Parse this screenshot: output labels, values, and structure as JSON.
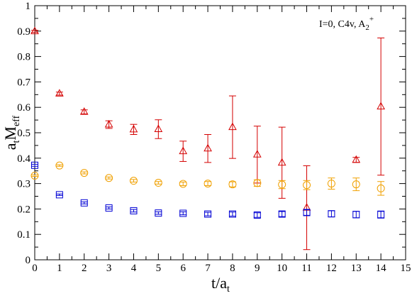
{
  "chart_data": {
    "type": "scatter",
    "xlim": [
      0,
      15
    ],
    "ylim": [
      0,
      1
    ],
    "xticks": [
      0,
      1,
      2,
      3,
      4,
      5,
      6,
      7,
      8,
      9,
      10,
      11,
      12,
      13,
      14,
      15
    ],
    "yticks": [
      0,
      0.1,
      0.2,
      0.3,
      0.4,
      0.5,
      0.6,
      0.7,
      0.8,
      0.9,
      1
    ],
    "ytick_labels": [
      "0",
      "0.1",
      "0.2",
      "0.3",
      "0.4",
      "0.5",
      "0.6",
      "0.7",
      "0.8",
      "0.9",
      "1"
    ],
    "xlabel": {
      "main": "t/a",
      "sub": "t"
    },
    "ylabel": {
      "a": "a",
      "a_sub": "t",
      "m": "M",
      "m_sub": "eff"
    },
    "annotation": {
      "main": "I=0, C4v, A",
      "sub": "2",
      "sup": "+"
    },
    "grid": false,
    "series": [
      {
        "marker": "triangle",
        "color": "#d40000",
        "points": [
          {
            "x": 0,
            "y": 0.899,
            "err": 0.004
          },
          {
            "x": 1,
            "y": 0.654,
            "err": 0.006
          },
          {
            "x": 2,
            "y": 0.582,
            "err": 0.008
          },
          {
            "x": 3,
            "y": 0.532,
            "err": 0.015
          },
          {
            "x": 4,
            "y": 0.513,
            "err": 0.02
          },
          {
            "x": 5,
            "y": 0.514,
            "err": 0.037
          },
          {
            "x": 6,
            "y": 0.427,
            "err": 0.04
          },
          {
            "x": 7,
            "y": 0.438,
            "err": 0.055
          },
          {
            "x": 8,
            "y": 0.522,
            "err": 0.123
          },
          {
            "x": 9,
            "y": 0.414,
            "err": 0.112
          },
          {
            "x": 10,
            "y": 0.382,
            "err": 0.14
          },
          {
            "x": 11,
            "y": 0.205,
            "err": 0.165
          },
          {
            "x": 13,
            "y": 0.393,
            "err": 0.01
          },
          {
            "x": 14,
            "y": 0.603,
            "err": 0.27
          }
        ]
      },
      {
        "marker": "circle",
        "color": "#f0a000",
        "points": [
          {
            "x": 0,
            "y": 0.331,
            "err": 0.003
          },
          {
            "x": 1,
            "y": 0.371,
            "err": 0.003
          },
          {
            "x": 2,
            "y": 0.342,
            "err": 0.004
          },
          {
            "x": 3,
            "y": 0.322,
            "err": 0.004
          },
          {
            "x": 4,
            "y": 0.311,
            "err": 0.005
          },
          {
            "x": 5,
            "y": 0.303,
            "err": 0.005
          },
          {
            "x": 6,
            "y": 0.299,
            "err": 0.007
          },
          {
            "x": 7,
            "y": 0.3,
            "err": 0.008
          },
          {
            "x": 8,
            "y": 0.297,
            "err": 0.01
          },
          {
            "x": 9,
            "y": 0.302,
            "err": 0.013
          },
          {
            "x": 10,
            "y": 0.296,
            "err": 0.016
          },
          {
            "x": 11,
            "y": 0.294,
            "err": 0.018
          },
          {
            "x": 12,
            "y": 0.3,
            "err": 0.022
          },
          {
            "x": 13,
            "y": 0.297,
            "err": 0.025
          },
          {
            "x": 14,
            "y": 0.281,
            "err": 0.027
          }
        ]
      },
      {
        "marker": "square",
        "color": "#0000d4",
        "points": [
          {
            "x": 0,
            "y": 0.372,
            "err": 0.004
          },
          {
            "x": 1,
            "y": 0.256,
            "err": 0.003
          },
          {
            "x": 2,
            "y": 0.224,
            "err": 0.004
          },
          {
            "x": 3,
            "y": 0.204,
            "err": 0.004
          },
          {
            "x": 4,
            "y": 0.193,
            "err": 0.005
          },
          {
            "x": 5,
            "y": 0.184,
            "err": 0.005
          },
          {
            "x": 6,
            "y": 0.183,
            "err": 0.006
          },
          {
            "x": 7,
            "y": 0.18,
            "err": 0.007
          },
          {
            "x": 8,
            "y": 0.18,
            "err": 0.008
          },
          {
            "x": 9,
            "y": 0.176,
            "err": 0.009
          },
          {
            "x": 10,
            "y": 0.18,
            "err": 0.01
          },
          {
            "x": 11,
            "y": 0.186,
            "err": 0.011
          },
          {
            "x": 12,
            "y": 0.181,
            "err": 0.012
          },
          {
            "x": 13,
            "y": 0.178,
            "err": 0.013
          },
          {
            "x": 14,
            "y": 0.178,
            "err": 0.014
          }
        ]
      }
    ]
  }
}
